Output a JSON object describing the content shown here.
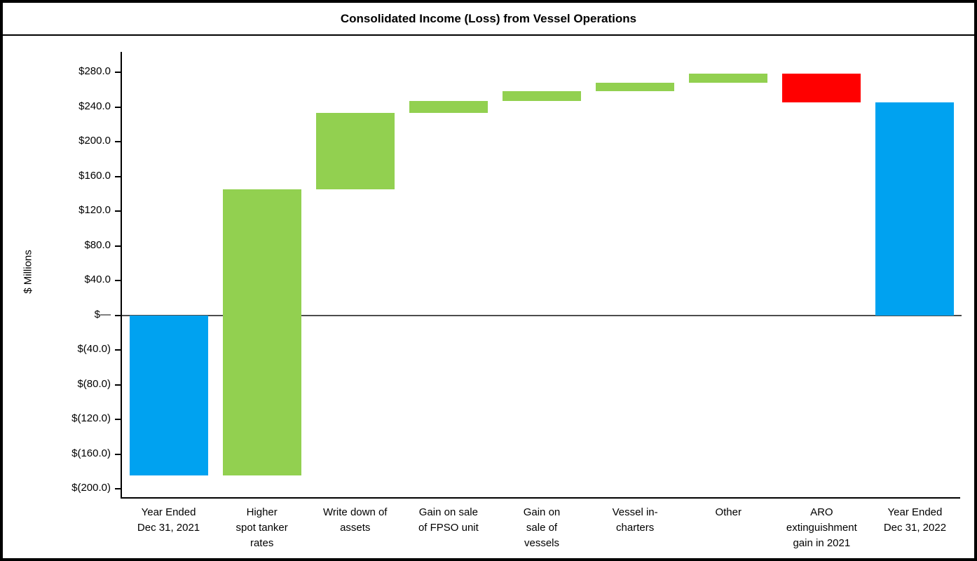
{
  "chart_data": {
    "type": "waterfall",
    "title": "Consolidated Income (Loss) from Vessel Operations",
    "ylabel": "$ Millions",
    "y_axis": {
      "min": -200,
      "max": 280,
      "step": 40,
      "tick_values": [
        280,
        240,
        200,
        160,
        120,
        80,
        40,
        0,
        -40,
        -80,
        -120,
        -160,
        -200
      ],
      "tick_labels": [
        "$280.0",
        "$240.0",
        "$200.0",
        "$160.0",
        "$120.0",
        "$80.0",
        "$40.0",
        "$—",
        "$(40.0)",
        "$(80.0)",
        "$(120.0)",
        "$(160.0)",
        "$(200.0)"
      ]
    },
    "colors": {
      "total": "#00A2F0",
      "increase": "#92D050",
      "decrease": "#FF0000"
    },
    "grid": "off",
    "legend": "none",
    "bars": [
      {
        "label": "Year Ended\nDec 31, 2021",
        "kind": "total",
        "value": -185
      },
      {
        "label": "Higher\nspot tanker\nrates",
        "kind": "delta",
        "value": 330
      },
      {
        "label": "Write down of\nassets",
        "kind": "delta",
        "value": 88
      },
      {
        "label": "Gain on sale\nof FPSO unit",
        "kind": "delta",
        "value": 14
      },
      {
        "label": "Gain on\nsale of\nvessels",
        "kind": "delta",
        "value": 11
      },
      {
        "label": "Vessel in-\ncharters",
        "kind": "delta",
        "value": 10
      },
      {
        "label": "Other",
        "kind": "delta",
        "value": 10
      },
      {
        "label": "ARO\nextinguishment\ngain in 2021",
        "kind": "delta",
        "value": -33
      },
      {
        "label": "Year Ended\nDec 31, 2022",
        "kind": "total",
        "value": 245
      }
    ]
  }
}
